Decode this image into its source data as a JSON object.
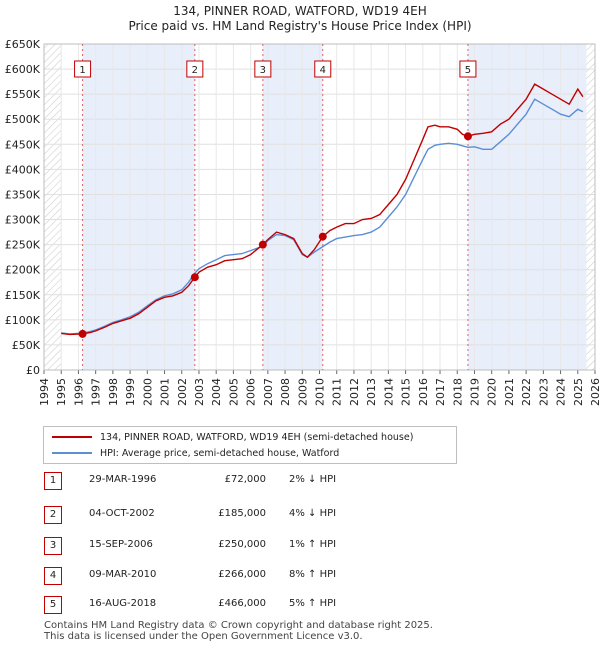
{
  "chart_data": {
    "type": "line",
    "title": "134, PINNER ROAD, WATFORD, WD19 4EH",
    "subtitle": "Price paid vs. HM Land Registry's House Price Index (HPI)",
    "xlim": [
      1994,
      2026
    ],
    "ylim": [
      0,
      650000
    ],
    "x_ticks": [
      "1994",
      "1995",
      "1996",
      "1997",
      "1998",
      "1999",
      "2000",
      "2001",
      "2002",
      "2003",
      "2004",
      "2005",
      "2006",
      "2007",
      "2008",
      "2009",
      "2010",
      "2011",
      "2012",
      "2013",
      "2014",
      "2015",
      "2016",
      "2017",
      "2018",
      "2019",
      "2020",
      "2021",
      "2022",
      "2023",
      "2024",
      "2025",
      "2026"
    ],
    "y_ticks": [
      {
        "value": 0,
        "label": "£0"
      },
      {
        "value": 50000,
        "label": "£50K"
      },
      {
        "value": 100000,
        "label": "£100K"
      },
      {
        "value": 150000,
        "label": "£150K"
      },
      {
        "value": 200000,
        "label": "£200K"
      },
      {
        "value": 250000,
        "label": "£250K"
      },
      {
        "value": 300000,
        "label": "£300K"
      },
      {
        "value": 350000,
        "label": "£350K"
      },
      {
        "value": 400000,
        "label": "£400K"
      },
      {
        "value": 450000,
        "label": "£450K"
      },
      {
        "value": 500000,
        "label": "£500K"
      },
      {
        "value": 550000,
        "label": "£550K"
      },
      {
        "value": 600000,
        "label": "£600K"
      },
      {
        "value": 650000,
        "label": "£650K"
      }
    ],
    "series": [
      {
        "name": "134, PINNER ROAD, WATFORD, WD19 4EH (semi-detached house)",
        "color": "#c00000",
        "points": [
          [
            1995.0,
            73000
          ],
          [
            1995.5,
            71000
          ],
          [
            1996.24,
            72000
          ],
          [
            1996.7,
            75000
          ],
          [
            1997.0,
            78000
          ],
          [
            1997.5,
            85000
          ],
          [
            1998.0,
            93000
          ],
          [
            1998.5,
            98000
          ],
          [
            1999.0,
            103000
          ],
          [
            1999.5,
            112000
          ],
          [
            2000.0,
            125000
          ],
          [
            2000.5,
            138000
          ],
          [
            2001.0,
            145000
          ],
          [
            2001.5,
            148000
          ],
          [
            2002.0,
            155000
          ],
          [
            2002.4,
            168000
          ],
          [
            2002.76,
            185000
          ],
          [
            2003.0,
            195000
          ],
          [
            2003.5,
            205000
          ],
          [
            2004.0,
            210000
          ],
          [
            2004.5,
            218000
          ],
          [
            2005.0,
            220000
          ],
          [
            2005.5,
            222000
          ],
          [
            2006.0,
            230000
          ],
          [
            2006.71,
            250000
          ],
          [
            2007.0,
            260000
          ],
          [
            2007.5,
            275000
          ],
          [
            2008.0,
            270000
          ],
          [
            2008.5,
            262000
          ],
          [
            2009.0,
            232000
          ],
          [
            2009.3,
            225000
          ],
          [
            2009.7,
            240000
          ],
          [
            2010.19,
            266000
          ],
          [
            2010.6,
            278000
          ],
          [
            2011.0,
            285000
          ],
          [
            2011.5,
            292000
          ],
          [
            2012.0,
            292000
          ],
          [
            2012.5,
            300000
          ],
          [
            2013.0,
            302000
          ],
          [
            2013.5,
            310000
          ],
          [
            2014.0,
            330000
          ],
          [
            2014.5,
            350000
          ],
          [
            2015.0,
            380000
          ],
          [
            2015.5,
            420000
          ],
          [
            2016.0,
            460000
          ],
          [
            2016.3,
            485000
          ],
          [
            2016.7,
            488000
          ],
          [
            2017.0,
            485000
          ],
          [
            2017.5,
            485000
          ],
          [
            2018.0,
            480000
          ],
          [
            2018.3,
            470000
          ],
          [
            2018.62,
            466000
          ],
          [
            2019.0,
            470000
          ],
          [
            2019.5,
            472000
          ],
          [
            2020.0,
            475000
          ],
          [
            2020.5,
            490000
          ],
          [
            2021.0,
            500000
          ],
          [
            2021.5,
            520000
          ],
          [
            2022.0,
            540000
          ],
          [
            2022.5,
            570000
          ],
          [
            2023.0,
            560000
          ],
          [
            2023.5,
            550000
          ],
          [
            2024.0,
            540000
          ],
          [
            2024.5,
            530000
          ],
          [
            2025.0,
            560000
          ],
          [
            2025.3,
            545000
          ]
        ]
      },
      {
        "name": "HPI: Average price, semi-detached house, Watford",
        "color": "#5b8ed6",
        "points": [
          [
            1995.0,
            74000
          ],
          [
            1995.5,
            72000
          ],
          [
            1996.24,
            73500
          ],
          [
            1996.7,
            77000
          ],
          [
            1997.0,
            80000
          ],
          [
            1997.5,
            87000
          ],
          [
            1998.0,
            95000
          ],
          [
            1998.5,
            100000
          ],
          [
            1999.0,
            106000
          ],
          [
            1999.5,
            115000
          ],
          [
            2000.0,
            128000
          ],
          [
            2000.5,
            140000
          ],
          [
            2001.0,
            148000
          ],
          [
            2001.5,
            152000
          ],
          [
            2002.0,
            160000
          ],
          [
            2002.4,
            175000
          ],
          [
            2002.76,
            193000
          ],
          [
            2003.0,
            202000
          ],
          [
            2003.5,
            212000
          ],
          [
            2004.0,
            220000
          ],
          [
            2004.5,
            228000
          ],
          [
            2005.0,
            230000
          ],
          [
            2005.5,
            232000
          ],
          [
            2006.0,
            238000
          ],
          [
            2006.71,
            247000
          ],
          [
            2007.0,
            258000
          ],
          [
            2007.5,
            270000
          ],
          [
            2008.0,
            268000
          ],
          [
            2008.5,
            260000
          ],
          [
            2009.0,
            230000
          ],
          [
            2009.3,
            225000
          ],
          [
            2009.7,
            235000
          ],
          [
            2010.19,
            246000
          ],
          [
            2010.6,
            255000
          ],
          [
            2011.0,
            262000
          ],
          [
            2011.5,
            265000
          ],
          [
            2012.0,
            268000
          ],
          [
            2012.5,
            270000
          ],
          [
            2013.0,
            275000
          ],
          [
            2013.5,
            285000
          ],
          [
            2014.0,
            305000
          ],
          [
            2014.5,
            325000
          ],
          [
            2015.0,
            350000
          ],
          [
            2015.5,
            385000
          ],
          [
            2016.0,
            420000
          ],
          [
            2016.3,
            440000
          ],
          [
            2016.7,
            448000
          ],
          [
            2017.0,
            450000
          ],
          [
            2017.5,
            452000
          ],
          [
            2018.0,
            450000
          ],
          [
            2018.3,
            447000
          ],
          [
            2018.62,
            444000
          ],
          [
            2019.0,
            445000
          ],
          [
            2019.5,
            440000
          ],
          [
            2020.0,
            440000
          ],
          [
            2020.5,
            455000
          ],
          [
            2021.0,
            470000
          ],
          [
            2021.5,
            490000
          ],
          [
            2022.0,
            510000
          ],
          [
            2022.5,
            540000
          ],
          [
            2023.0,
            530000
          ],
          [
            2023.5,
            520000
          ],
          [
            2024.0,
            510000
          ],
          [
            2024.5,
            505000
          ],
          [
            2025.0,
            520000
          ],
          [
            2025.3,
            515000
          ]
        ]
      }
    ],
    "sale_markers": [
      {
        "label": "1",
        "x": 1996.24,
        "value": 72000
      },
      {
        "label": "2",
        "x": 2002.76,
        "value": 185000
      },
      {
        "label": "3",
        "x": 2006.71,
        "value": 250000
      },
      {
        "label": "4",
        "x": 2010.19,
        "value": 266000
      },
      {
        "label": "5",
        "x": 2018.62,
        "value": 466000
      }
    ],
    "hatch_ranges": [
      [
        1994,
        1995.0
      ],
      [
        2025.5,
        2026
      ]
    ]
  },
  "legend": {
    "property_label": "134, PINNER ROAD, WATFORD, WD19 4EH (semi-detached house)",
    "hpi_label": "HPI: Average price, semi-detached house, Watford",
    "property_color": "#c00000",
    "hpi_color": "#5b8ed6"
  },
  "sales": [
    {
      "num": "1",
      "date": "29-MAR-1996",
      "price": "£72,000",
      "hpi": "2% ↓ HPI"
    },
    {
      "num": "2",
      "date": "04-OCT-2002",
      "price": "£185,000",
      "hpi": "4% ↓ HPI"
    },
    {
      "num": "3",
      "date": "15-SEP-2006",
      "price": "£250,000",
      "hpi": "1% ↑ HPI"
    },
    {
      "num": "4",
      "date": "09-MAR-2010",
      "price": "£266,000",
      "hpi": "8% ↑ HPI"
    },
    {
      "num": "5",
      "date": "16-AUG-2018",
      "price": "£466,000",
      "hpi": "5% ↑ HPI"
    }
  ],
  "footer": {
    "line1": "Contains HM Land Registry data © Crown copyright and database right 2025.",
    "line2": "This data is licensed under the Open Government Licence v3.0."
  }
}
